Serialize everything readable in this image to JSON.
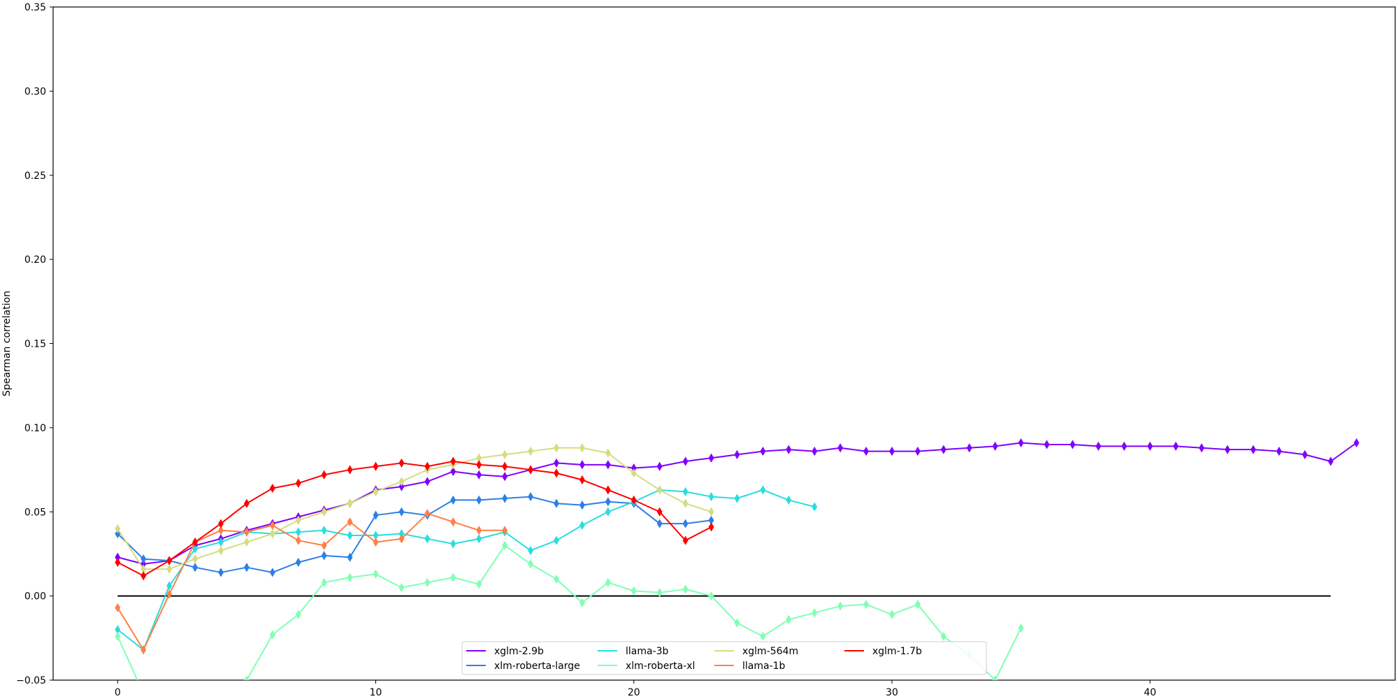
{
  "chart_data": {
    "type": "line",
    "title": "",
    "xlabel": "",
    "ylabel": "Spearman correlation",
    "xlim": [
      -2.5,
      49.5
    ],
    "ylim": [
      -0.05,
      0.35
    ],
    "xticks": [
      "0",
      "10",
      "20",
      "30",
      "40"
    ],
    "yticks": [
      "−0.05",
      "0.00",
      "0.05",
      "0.10",
      "0.15",
      "0.20",
      "0.25",
      "0.30",
      "0.35"
    ],
    "grid": false,
    "legend_position": "lower-center",
    "reference_line": {
      "y": 0.0,
      "x_range": [
        0,
        47
      ],
      "color": "#000000"
    },
    "series": [
      {
        "name": "xglm-2.9b",
        "color": "#8000ff",
        "values": [
          0.023,
          0.019,
          0.021,
          0.03,
          0.034,
          0.039,
          0.043,
          0.047,
          0.051,
          0.055,
          0.063,
          0.065,
          0.068,
          0.074,
          0.072,
          0.071,
          0.075,
          0.079,
          0.078,
          0.078,
          0.076,
          0.077,
          0.08,
          0.082,
          0.084,
          0.086,
          0.087,
          0.086,
          0.088,
          0.086,
          0.086,
          0.086,
          0.087,
          0.088,
          0.089,
          0.091,
          0.09,
          0.09,
          0.089,
          0.089,
          0.089,
          0.089,
          0.088,
          0.087,
          0.087,
          0.086,
          0.084,
          0.08,
          0.091
        ]
      },
      {
        "name": "xlm-roberta-large",
        "color": "#2c7fe8",
        "values": [
          0.037,
          0.022,
          0.021,
          0.017,
          0.014,
          0.017,
          0.014,
          0.02,
          0.024,
          0.023,
          0.048,
          0.05,
          0.048,
          0.057,
          0.057,
          0.058,
          0.059,
          0.055,
          0.054,
          0.056,
          0.055,
          0.043,
          0.043,
          0.045
        ]
      },
      {
        "name": "llama-3b",
        "color": "#2adddd",
        "values": [
          -0.02,
          -0.032,
          0.006,
          0.028,
          0.032,
          0.038,
          0.037,
          0.038,
          0.039,
          0.036,
          0.036,
          0.037,
          0.034,
          0.031,
          0.034,
          0.038,
          0.027,
          0.033,
          0.042,
          0.05,
          0.056,
          0.063,
          0.062,
          0.059,
          0.058,
          0.063,
          0.057,
          0.053
        ]
      },
      {
        "name": "xlm-roberta-xl",
        "color": "#80ffb4",
        "values": [
          -0.024,
          -0.058,
          -0.07,
          -0.07,
          -0.065,
          -0.05,
          -0.023,
          -0.011,
          0.008,
          0.011,
          0.013,
          0.005,
          0.008,
          0.011,
          0.007,
          0.03,
          0.019,
          0.01,
          -0.004,
          0.008,
          0.003,
          0.002,
          0.004,
          0.0,
          -0.016,
          -0.024,
          -0.014,
          -0.01,
          -0.006,
          -0.005,
          -0.011,
          -0.005,
          -0.024,
          -0.035,
          -0.05,
          -0.019
        ]
      },
      {
        "name": "xglm-564m",
        "color": "#d4dd80",
        "values": [
          0.04,
          0.016,
          0.016,
          0.022,
          0.027,
          0.032,
          0.037,
          0.045,
          0.05,
          0.055,
          0.062,
          0.068,
          0.075,
          0.078,
          0.082,
          0.084,
          0.086,
          0.088,
          0.088,
          0.085,
          0.073,
          0.063,
          0.055,
          0.05
        ]
      },
      {
        "name": "llama-1b",
        "color": "#ff7f48",
        "values": [
          -0.007,
          -0.032,
          0.001,
          0.032,
          0.039,
          0.038,
          0.042,
          0.033,
          0.03,
          0.044,
          0.032,
          0.034,
          0.049,
          0.044,
          0.039,
          0.039
        ]
      },
      {
        "name": "xglm-1.7b",
        "color": "#ff0000",
        "values": [
          0.02,
          0.012,
          0.021,
          0.032,
          0.043,
          0.055,
          0.064,
          0.067,
          0.072,
          0.075,
          0.077,
          0.079,
          0.077,
          0.08,
          0.078,
          0.077,
          0.075,
          0.073,
          0.069,
          0.063,
          0.057,
          0.05,
          0.033,
          0.041
        ]
      }
    ]
  }
}
